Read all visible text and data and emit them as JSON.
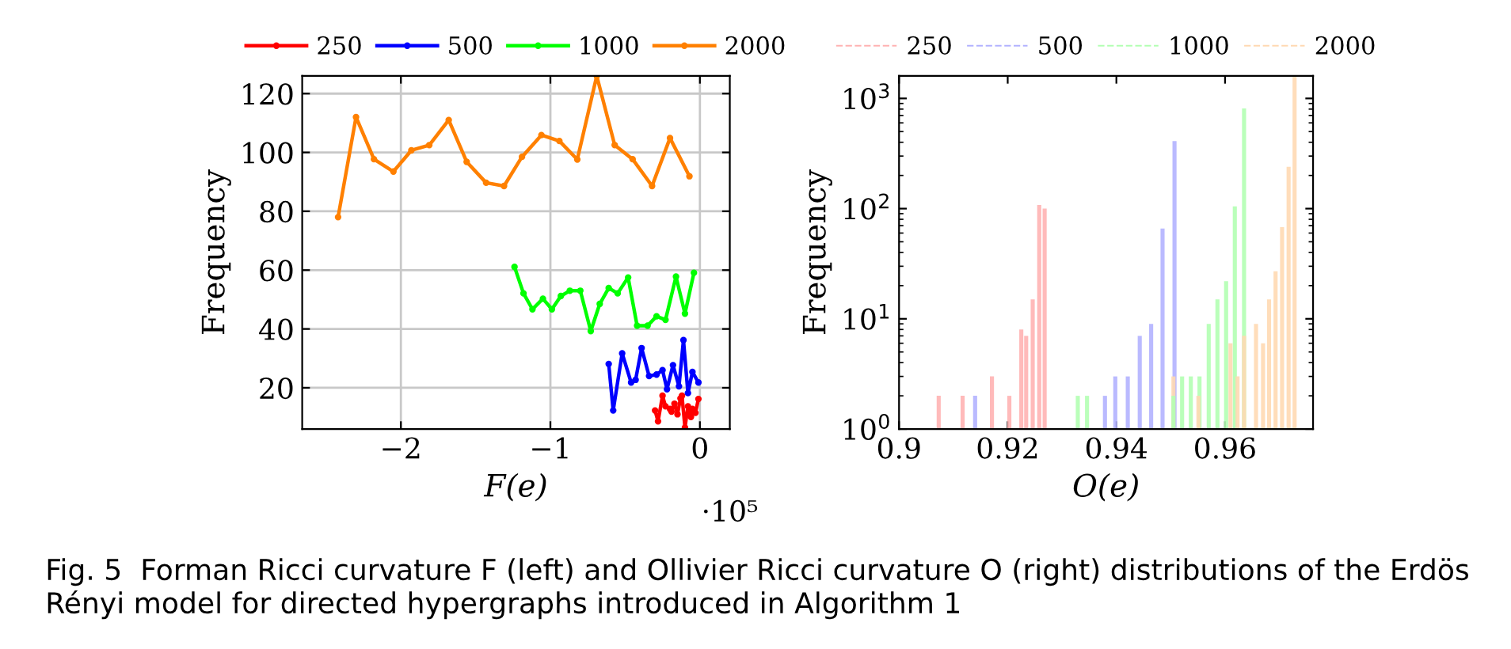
{
  "chart_data": [
    {
      "type": "line",
      "xlabel": "F(e)",
      "ylabel": "Frequency",
      "xlim": [
        -2.66,
        0.2
      ],
      "xticks": [
        {
          "value": -2,
          "label": "−2"
        },
        {
          "value": -1,
          "label": "−1"
        },
        0
      ],
      "ylim": [
        6,
        126
      ],
      "yticks": [
        20,
        40,
        60,
        80,
        100,
        120
      ],
      "grid": true,
      "legend": "top",
      "marker": "circle",
      "line_style": "solid",
      "annotations": [
        "·10⁵",
        "Fig. 5  Forman Ricci curvature F (left) and Ollivier Ricci curvature O (right) distributions of the Erdös Rényi model for directed hypergraphs introduced in Algorithm 1"
      ],
      "series": [
        {
          "name": "250",
          "color": "#ff0000",
          "x": [
            -0.3,
            -0.28,
            -0.25,
            -0.23,
            -0.2,
            -0.19,
            -0.17,
            -0.15,
            -0.13,
            -0.12,
            -0.1,
            -0.08,
            -0.06,
            -0.05,
            -0.03,
            -0.01
          ],
          "values": [
            12.3,
            8.6,
            17.3,
            13.7,
            12.8,
            11.9,
            14.6,
            11.0,
            16.4,
            17.3,
            6.5,
            13.7,
            10.1,
            12.8,
            11.5,
            16.2
          ]
        },
        {
          "name": "500",
          "color": "#0000ff",
          "x": [
            -0.61,
            -0.58,
            -0.52,
            -0.46,
            -0.43,
            -0.39,
            -0.34,
            -0.29,
            -0.25,
            -0.22,
            -0.18,
            -0.14,
            -0.11,
            -0.08,
            -0.05,
            -0.01
          ],
          "values": [
            28.1,
            12.3,
            31.7,
            21.8,
            22.7,
            33.5,
            24.0,
            24.5,
            26.0,
            19.5,
            27.7,
            20.5,
            36.2,
            18.2,
            25.4,
            21.8
          ]
        },
        {
          "name": "1000",
          "color": "#00ff00",
          "x": [
            -1.24,
            -1.18,
            -1.12,
            -1.05,
            -0.99,
            -0.93,
            -0.87,
            -0.8,
            -0.73,
            -0.67,
            -0.61,
            -0.55,
            -0.48,
            -0.42,
            -0.35,
            -0.29,
            -0.23,
            -0.16,
            -0.1,
            -0.04
          ],
          "values": [
            61.1,
            52.1,
            46.7,
            50.3,
            46.7,
            51.2,
            53.0,
            53.0,
            39.3,
            48.5,
            53.9,
            52.1,
            57.5,
            41.1,
            41.1,
            44.3,
            43.1,
            57.8,
            45.2,
            59.1
          ]
        },
        {
          "name": "2000",
          "color": "#ff8000",
          "x": [
            -2.42,
            -2.3,
            -2.18,
            -2.05,
            -1.93,
            -1.81,
            -1.68,
            -1.56,
            -1.43,
            -1.31,
            -1.19,
            -1.06,
            -0.94,
            -0.82,
            -0.69,
            -0.57,
            -0.45,
            -0.32,
            -0.2,
            -0.07
          ],
          "values": [
            78,
            112,
            97.7,
            93.5,
            100.7,
            102.5,
            111,
            96.8,
            89.7,
            88.6,
            98.5,
            105.9,
            103.9,
            97.6,
            126,
            102.5,
            97.7,
            88.6,
            104.9,
            91.9
          ]
        }
      ]
    },
    {
      "type": "bar",
      "xlabel": "O(e)",
      "ylabel": "Frequency",
      "xlim": [
        0.9,
        0.9762
      ],
      "xticks": [
        0.9,
        0.92,
        0.94,
        0.96
      ],
      "ylim": [
        1,
        1600
      ],
      "yticks": [
        {
          "value": 1,
          "label": "10$^{0}$"
        },
        {
          "value": 10,
          "label": "10$^{1}$"
        },
        {
          "value": 100,
          "label": "10$^{2}$"
        },
        {
          "value": 1000,
          "label": "10$^{3}$"
        }
      ],
      "log": "y",
      "grid": false,
      "legend": "top",
      "line_style": "dashed",
      "series": [
        {
          "name": "250",
          "color": "#ffb3b3",
          "x": [
            0.9073,
            0.9117,
            0.9171,
            0.9203,
            0.9225,
            0.9234,
            0.9246,
            0.9258,
            0.9268
          ],
          "values": [
            2,
            2,
            3,
            2,
            8,
            7,
            15,
            108,
            100
          ]
        },
        {
          "name": "500",
          "color": "#b3b3ff",
          "x": [
            0.914,
            0.9379,
            0.9398,
            0.9421,
            0.9443,
            0.9464,
            0.9485,
            0.9507
          ],
          "values": [
            2,
            2,
            3,
            3,
            7,
            9,
            66,
            410
          ]
        },
        {
          "name": "1000",
          "color": "#b3ffb3",
          "x": [
            0.9329,
            0.9346,
            0.9505,
            0.9521,
            0.9537,
            0.9553,
            0.957,
            0.9586,
            0.9602,
            0.9618,
            0.9635
          ],
          "values": [
            2,
            2,
            2,
            3,
            3,
            3,
            9,
            15,
            22,
            105,
            810
          ]
        },
        {
          "name": "2000",
          "color": "#ffd9b3",
          "x": [
            0.9505,
            0.9551,
            0.961,
            0.9623,
            0.9635,
            0.9657,
            0.967,
            0.9681,
            0.9693,
            0.9705,
            0.9717,
            0.9728
          ],
          "values": [
            3,
            2,
            6,
            3,
            7,
            9,
            6,
            15,
            27,
            68,
            240,
            1600
          ]
        }
      ]
    }
  ]
}
